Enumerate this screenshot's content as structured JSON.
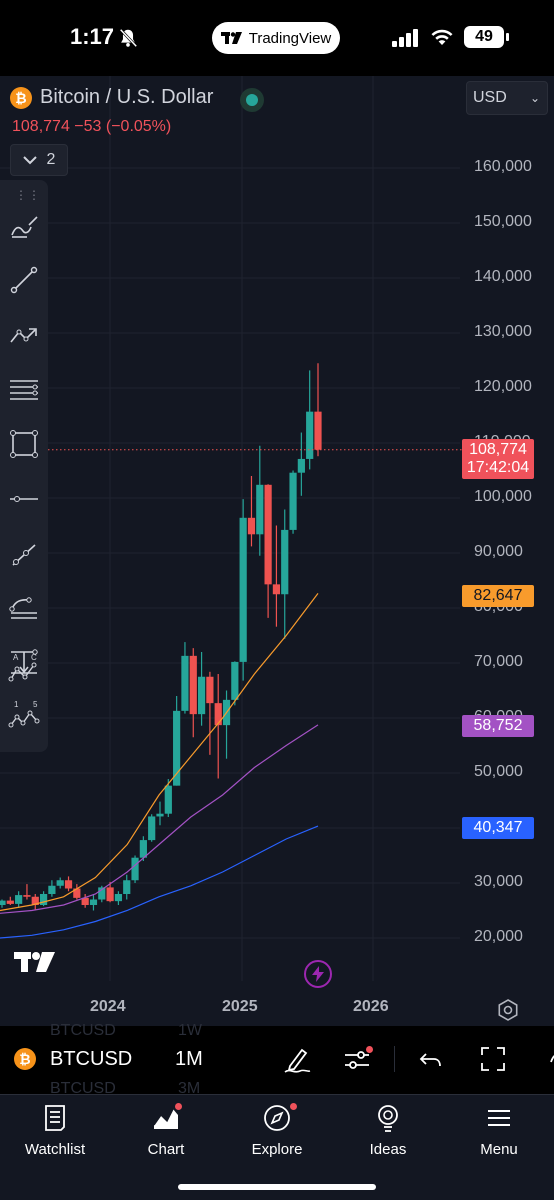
{
  "status_bar": {
    "time": "1:17",
    "app_name": "TradingView",
    "battery": "49"
  },
  "header": {
    "symbol_title": "Bitcoin / U.S. Dollar",
    "currency": "USD",
    "price_line": "108,774 −53 (−0.05%)",
    "collapse_count": "2"
  },
  "toolbar": {
    "tools": [
      "brush-tool-icon",
      "trend-line-icon",
      "path-icon",
      "fib-levels-icon",
      "rectangle-icon",
      "horizontal-line-icon",
      "ray-icon",
      "fib-channel-icon",
      "measure-icon",
      "elliott-wave-icon",
      "abcd-pattern-icon"
    ],
    "wave_labels": [
      "1",
      "5"
    ],
    "abcd_labels": [
      "A",
      "C"
    ]
  },
  "chart_data": {
    "type": "candlestick",
    "x_ticks": [
      "2024",
      "2025",
      "2026"
    ],
    "y_ticks": [
      "160,000",
      "150,000",
      "140,000",
      "130,000",
      "120,000",
      "110,000",
      "100,000",
      "90,000",
      "80,000",
      "70,000",
      "60,000",
      "50,000",
      "40,000",
      "30,000",
      "20,000"
    ],
    "y_range": [
      20000,
      160000
    ],
    "current_price": "108,774",
    "countdown": "17:42:04",
    "indicator_tags": [
      {
        "value": "82,647",
        "color": "#f89b2c"
      },
      {
        "value": "58,752",
        "color": "#a352c4"
      },
      {
        "value": "40,347",
        "color": "#2962ff"
      }
    ],
    "candles": [
      [
        26000,
        27000,
        25500,
        26800
      ],
      [
        26800,
        27500,
        26000,
        26200
      ],
      [
        26200,
        28500,
        25500,
        27800
      ],
      [
        27800,
        29800,
        27000,
        27500
      ],
      [
        27500,
        28000,
        25000,
        26000
      ],
      [
        26000,
        28500,
        25800,
        28000
      ],
      [
        28000,
        30500,
        27500,
        29500
      ],
      [
        29500,
        31000,
        29000,
        30500
      ],
      [
        30500,
        31200,
        28500,
        29000
      ],
      [
        29000,
        29800,
        27000,
        27300
      ],
      [
        27300,
        28000,
        25500,
        26000
      ],
      [
        26000,
        28000,
        25000,
        27000
      ],
      [
        27000,
        29500,
        26500,
        29200
      ],
      [
        29200,
        30200,
        26500,
        26700
      ],
      [
        26700,
        28500,
        26000,
        28000
      ],
      [
        28000,
        31500,
        27000,
        30500
      ],
      [
        30500,
        35000,
        30000,
        34600
      ],
      [
        34600,
        38500,
        34000,
        37800
      ],
      [
        37800,
        42500,
        37500,
        42100
      ],
      [
        42100,
        44800,
        40500,
        42600
      ],
      [
        42600,
        48900,
        42000,
        47700
      ],
      [
        47700,
        64000,
        47700,
        61300
      ],
      [
        61300,
        73800,
        60800,
        71300
      ],
      [
        71300,
        72700,
        56500,
        60700
      ],
      [
        60700,
        72000,
        58600,
        67500
      ],
      [
        67500,
        68400,
        53300,
        62700
      ],
      [
        62700,
        68000,
        49000,
        58700
      ],
      [
        58700,
        65000,
        52600,
        63300
      ],
      [
        63300,
        70300,
        62300,
        70200
      ],
      [
        70200,
        99800,
        66800,
        96400
      ],
      [
        96400,
        104000,
        91200,
        93400
      ],
      [
        93400,
        109500,
        89500,
        102400
      ],
      [
        102400,
        102500,
        78200,
        84300
      ],
      [
        84300,
        95000,
        76600,
        82500
      ],
      [
        82500,
        97900,
        74400,
        94200
      ],
      [
        94200,
        105000,
        93500,
        104600
      ],
      [
        104600,
        111900,
        100400,
        107100
      ],
      [
        107100,
        123200,
        105200,
        115700
      ],
      [
        115700,
        124500,
        107600,
        108774
      ]
    ],
    "moving_averages": [
      {
        "name": "",
        "color": "#f89b2c",
        "values": [
          25000,
          26000,
          27500,
          31000,
          37000,
          46000,
          53000,
          60000,
          68000,
          75000,
          82647
        ]
      },
      {
        "name": "",
        "color": "#a352c4",
        "values": [
          24500,
          25000,
          26000,
          28000,
          32000,
          37000,
          42000,
          46000,
          51000,
          55000,
          58752
        ]
      },
      {
        "name": "",
        "color": "#2962ff",
        "values": [
          20000,
          20500,
          21500,
          23000,
          25000,
          27500,
          29500,
          32000,
          35000,
          38000,
          40347
        ]
      }
    ]
  },
  "bottom_bar": {
    "symbol": "BTCUSD",
    "interval": "1M",
    "ghost_symbol_top": "BTCUSD",
    "ghost_interval_top": "1W",
    "ghost_symbol_bottom": "BTCUSD",
    "ghost_interval_bottom": "3M"
  },
  "tabs": [
    {
      "label": "Watchlist",
      "icon": "watchlist-icon"
    },
    {
      "label": "Chart",
      "icon": "chart-icon"
    },
    {
      "label": "Explore",
      "icon": "compass-icon"
    },
    {
      "label": "Ideas",
      "icon": "lightbulb-icon"
    },
    {
      "label": "Menu",
      "icon": "menu-icon"
    }
  ]
}
